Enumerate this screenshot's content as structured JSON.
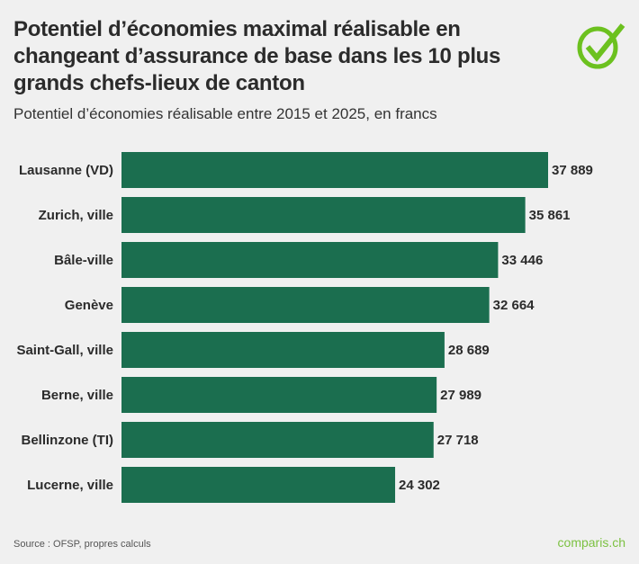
{
  "title": "Potentiel d’économies maximal réalisable en changeant d’assurance de base dans les 10 plus grands chefs-lieux de canton",
  "subtitle": "Potentiel d’économies réalisable entre 2015 et 2025, en francs",
  "source": "Source : OFSP, propres calculs",
  "brand": "comparis.ch",
  "logo_icon": "green-checkmark-circle-icon",
  "colors": {
    "bar": "#1b6e4f",
    "background": "#f0f0f0",
    "brand": "#7cc142"
  },
  "chart_data": {
    "type": "bar",
    "orientation": "horizontal",
    "title": "Potentiel d’économies maximal réalisable en changeant d’assurance de base dans les 10 plus grands chefs-lieux de canton",
    "subtitle": "Potentiel d’économies réalisable entre 2015 et 2025, en francs",
    "categories": [
      "Lausanne (VD)",
      "Zurich, ville",
      "Bâle-ville",
      "Genève",
      "Saint-Gall, ville",
      "Berne, ville",
      "Bellinzone (TI)",
      "Lucerne, ville"
    ],
    "values": [
      37889,
      35861,
      33446,
      32664,
      28689,
      27989,
      27718,
      24302
    ],
    "labels": [
      "37 889",
      "35 861",
      "33 446",
      "32 664",
      "28 689",
      "27 989",
      "27 718",
      "24 302"
    ],
    "xlim": [
      0,
      37889
    ],
    "grid": false,
    "legend": "none"
  }
}
